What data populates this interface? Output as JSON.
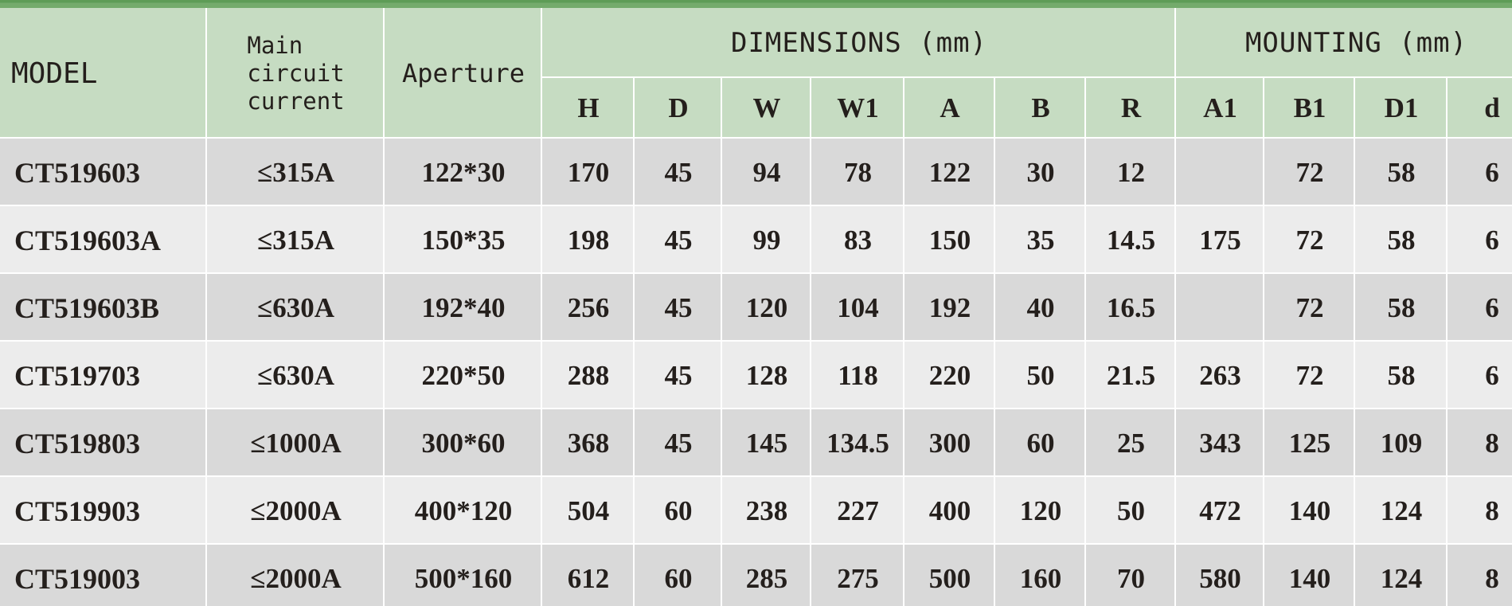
{
  "colors": {
    "topbar": "#74ab6c",
    "topbar-dark": "#5e9c57",
    "green": "#c6dcc2",
    "gray": "#d9d9d9",
    "light": "#ececec",
    "ink": "#241f1c",
    "sep": "#ffffff"
  },
  "table": {
    "header": {
      "model": "MODEL",
      "main_circuit_current": "Main\ncircuit\ncurrent",
      "aperture": "Aperture",
      "dimensions_group": "DIMENSIONS (mm)",
      "mounting_group": "MOUNTING (mm)",
      "sub_columns": [
        "H",
        "D",
        "W",
        "W1",
        "A",
        "B",
        "R",
        "A1",
        "B1",
        "D1",
        "d"
      ]
    },
    "rows": [
      {
        "model": "CT519603",
        "current": "≤315A",
        "aperture": "122*30",
        "values": [
          "170",
          "45",
          "94",
          "78",
          "122",
          "30",
          "12",
          "",
          "72",
          "58",
          "6"
        ]
      },
      {
        "model": "CT519603A",
        "current": "≤315A",
        "aperture": "150*35",
        "values": [
          "198",
          "45",
          "99",
          "83",
          "150",
          "35",
          "14.5",
          "175",
          "72",
          "58",
          "6"
        ]
      },
      {
        "model": "CT519603B",
        "current": "≤630A",
        "aperture": "192*40",
        "values": [
          "256",
          "45",
          "120",
          "104",
          "192",
          "40",
          "16.5",
          "",
          "72",
          "58",
          "6"
        ]
      },
      {
        "model": "CT519703",
        "current": "≤630A",
        "aperture": "220*50",
        "values": [
          "288",
          "45",
          "128",
          "118",
          "220",
          "50",
          "21.5",
          "263",
          "72",
          "58",
          "6"
        ]
      },
      {
        "model": "CT519803",
        "current": "≤1000A",
        "aperture": "300*60",
        "values": [
          "368",
          "45",
          "145",
          "134.5",
          "300",
          "60",
          "25",
          "343",
          "125",
          "109",
          "8"
        ]
      },
      {
        "model": "CT519903",
        "current": "≤2000A",
        "aperture": "400*120",
        "values": [
          "504",
          "60",
          "238",
          "227",
          "400",
          "120",
          "50",
          "472",
          "140",
          "124",
          "8"
        ]
      },
      {
        "model": "CT519003",
        "current": "≤2000A",
        "aperture": "500*160",
        "values": [
          "612",
          "60",
          "285",
          "275",
          "500",
          "160",
          "70",
          "580",
          "140",
          "124",
          "8"
        ]
      }
    ]
  }
}
